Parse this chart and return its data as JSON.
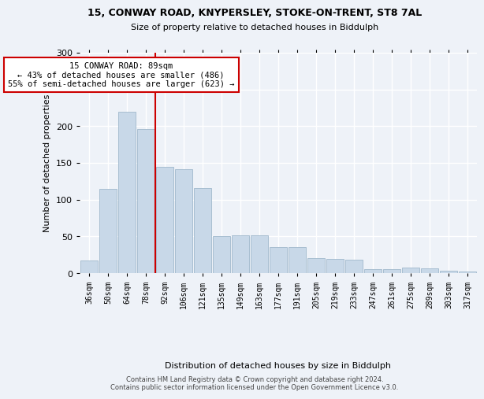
{
  "title1": "15, CONWAY ROAD, KNYPERSLEY, STOKE-ON-TRENT, ST8 7AL",
  "title2": "Size of property relative to detached houses in Biddulph",
  "xlabel": "Distribution of detached houses by size in Biddulph",
  "ylabel": "Number of detached properties",
  "categories": [
    "36sqm",
    "50sqm",
    "64sqm",
    "78sqm",
    "92sqm",
    "106sqm",
    "121sqm",
    "135sqm",
    "149sqm",
    "163sqm",
    "177sqm",
    "191sqm",
    "205sqm",
    "219sqm",
    "233sqm",
    "247sqm",
    "261sqm",
    "275sqm",
    "289sqm",
    "303sqm",
    "317sqm"
  ],
  "values": [
    17,
    115,
    220,
    196,
    145,
    141,
    116,
    50,
    51,
    51,
    35,
    35,
    20,
    19,
    18,
    5,
    5,
    8,
    6,
    3,
    2
  ],
  "bar_color": "#c8d8e8",
  "bar_edge_color": "#a0b8cc",
  "vline_x_index": 3.5,
  "vline_color": "#cc0000",
  "annotation_title": "15 CONWAY ROAD: 89sqm",
  "annotation_line2": "← 43% of detached houses are smaller (486)",
  "annotation_line3": "55% of semi-detached houses are larger (623) →",
  "annotation_box_color": "#ffffff",
  "annotation_box_edge": "#cc0000",
  "footer1": "Contains HM Land Registry data © Crown copyright and database right 2024.",
  "footer2": "Contains public sector information licensed under the Open Government Licence v3.0.",
  "ylim": [
    0,
    300
  ],
  "background_color": "#eef2f8",
  "grid_color": "#ffffff"
}
